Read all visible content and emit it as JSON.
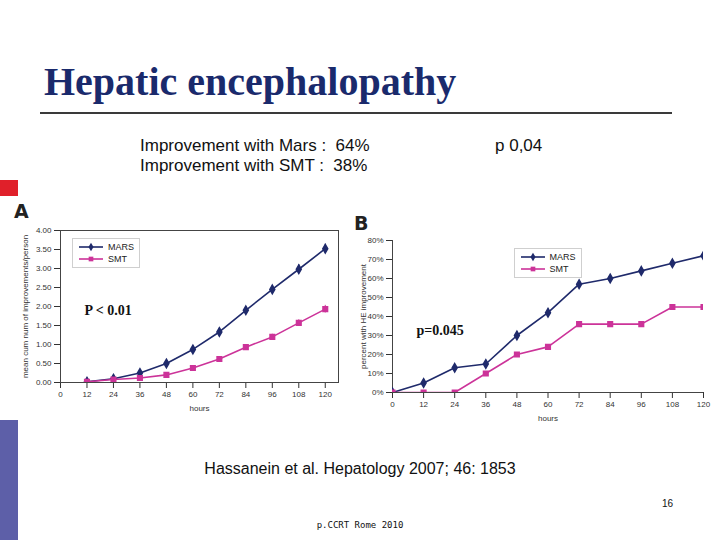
{
  "slide": {
    "title": "Hepatic encephalopathy",
    "lines": [
      "Improvement with Mars :  64%",
      "Improvement with SMT :  38%"
    ],
    "p_value": "p 0,04",
    "citation": "Hassanein et al. Hepatology 2007; 46: 1853",
    "page_number": "16",
    "footer": "p.CCRT Rome 2010"
  },
  "chart_data": [
    {
      "type": "line",
      "title": "A",
      "x_label": "hours",
      "y_label": "mean cum num of improvements/person",
      "x": [
        12,
        24,
        36,
        48,
        60,
        72,
        84,
        96,
        108,
        120
      ],
      "series": [
        {
          "name": "MARS",
          "color": "#1f2a6b",
          "marker": "diamond",
          "values": [
            0.02,
            0.1,
            0.25,
            0.5,
            0.87,
            1.33,
            1.9,
            2.45,
            2.98,
            3.52
          ],
          "errors": [
            0.02,
            0.03,
            0.04,
            0.07,
            0.08,
            0.1,
            0.1,
            0.1,
            0.12,
            0.12
          ]
        },
        {
          "name": "SMT",
          "color": "#cc3399",
          "marker": "square",
          "values": [
            0.02,
            0.08,
            0.12,
            0.2,
            0.38,
            0.62,
            0.93,
            1.2,
            1.57,
            1.93
          ],
          "errors": [
            0.02,
            0.03,
            0.03,
            0.04,
            0.05,
            0.06,
            0.06,
            0.07,
            0.08,
            0.1
          ]
        }
      ],
      "xlim": [
        0,
        126
      ],
      "xticks": [
        0,
        12,
        24,
        36,
        48,
        60,
        72,
        84,
        96,
        108,
        120
      ],
      "ylim": [
        0,
        4
      ],
      "yticks": [
        {
          "value": 0,
          "label": "0.00"
        },
        {
          "value": 0.5,
          "label": "0.50"
        },
        {
          "value": 1,
          "label": "1.00"
        },
        {
          "value": 1.5,
          "label": "1.50"
        },
        {
          "value": 2,
          "label": "2.00"
        },
        {
          "value": 2.5,
          "label": "2.50"
        },
        {
          "value": 3,
          "label": "3.00"
        },
        {
          "value": 3.5,
          "label": "3.50"
        },
        {
          "value": 4,
          "label": "4.00"
        }
      ],
      "legend": "top-left",
      "annotation": "P < 0.01",
      "grid": false
    },
    {
      "type": "line",
      "title": "B",
      "x_label": "hours",
      "y_label": "percent with HE improvement",
      "x": [
        0,
        12,
        24,
        36,
        48,
        60,
        72,
        84,
        96,
        108,
        120
      ],
      "series": [
        {
          "name": "MARS",
          "color": "#1f2a6b",
          "marker": "diamond",
          "values": [
            0,
            5,
            13,
            15,
            30,
            42,
            57,
            60,
            64,
            68,
            72
          ]
        },
        {
          "name": "SMT",
          "color": "#cc3399",
          "marker": "square",
          "values": [
            0,
            0,
            0,
            10,
            20,
            24,
            36,
            36,
            36,
            45,
            45
          ]
        }
      ],
      "xlim": [
        0,
        120
      ],
      "xticks": [
        0,
        12,
        24,
        36,
        48,
        60,
        72,
        84,
        96,
        108,
        120
      ],
      "ylim": [
        0,
        80
      ],
      "yticks": [
        {
          "value": 0,
          "label": "0%"
        },
        {
          "value": 10,
          "label": "10%"
        },
        {
          "value": 20,
          "label": "20%"
        },
        {
          "value": 30,
          "label": "30%"
        },
        {
          "value": 40,
          "label": "40%"
        },
        {
          "value": 50,
          "label": "50%"
        },
        {
          "value": 60,
          "label": "60%"
        },
        {
          "value": 70,
          "label": "70%"
        },
        {
          "value": 80,
          "label": "80%"
        }
      ],
      "legend": "top",
      "annotation": "p=0.045",
      "grid": false
    }
  ]
}
